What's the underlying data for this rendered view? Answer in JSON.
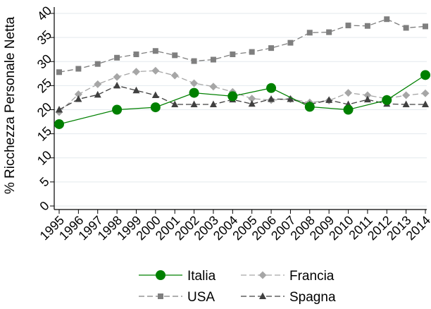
{
  "chart_data": {
    "type": "line",
    "title": "",
    "xlabel": "",
    "ylabel": "% Ricchezza Personale Netta",
    "ylim": [
      0,
      40
    ],
    "yticks": [
      "0",
      "5",
      "10",
      "15",
      "20",
      "25",
      "30",
      "35",
      "40"
    ],
    "xticks": [
      "1995",
      "1996",
      "1997",
      "1998",
      "1999",
      "2000",
      "2001",
      "2002",
      "2003",
      "2004",
      "2005",
      "2006",
      "2007",
      "2008",
      "2009",
      "2010",
      "2011",
      "2012",
      "2013",
      "2014"
    ],
    "grid": "horizontal",
    "legend_position": "bottom",
    "series": [
      {
        "name": "Italia",
        "style": "solid",
        "marker": "circle",
        "color": "#008000",
        "x": [
          1995,
          1998,
          2000,
          2002,
          2004,
          2006,
          2008,
          2010,
          2012,
          2014
        ],
        "y": [
          17.0,
          20.0,
          20.5,
          23.5,
          22.8,
          24.5,
          20.6,
          20.0,
          22.0,
          27.2
        ]
      },
      {
        "name": "Francia",
        "style": "dashed",
        "marker": "diamond",
        "color": "#a6a6a6",
        "x": [
          1995,
          1996,
          1997,
          1998,
          1999,
          2000,
          2001,
          2002,
          2003,
          2004,
          2005,
          2006,
          2007,
          2008,
          2009,
          2010,
          2011,
          2012,
          2013,
          2014
        ],
        "y": [
          19.5,
          23.2,
          25.3,
          26.8,
          27.9,
          28.1,
          27.1,
          25.5,
          24.8,
          23.7,
          22.3,
          22.0,
          22.2,
          21.5,
          21.9,
          23.5,
          23.0,
          22.3,
          23.0,
          23.4
        ]
      },
      {
        "name": "USA",
        "style": "dashed",
        "marker": "square",
        "color": "#7f7f7f",
        "x": [
          1995,
          1996,
          1997,
          1998,
          1999,
          2000,
          2001,
          2002,
          2003,
          2004,
          2005,
          2006,
          2007,
          2008,
          2009,
          2010,
          2011,
          2012,
          2013,
          2014
        ],
        "y": [
          27.8,
          28.5,
          29.5,
          30.8,
          31.5,
          32.2,
          31.3,
          30.1,
          30.4,
          31.5,
          32.0,
          32.8,
          33.9,
          36.0,
          36.1,
          37.5,
          37.4,
          38.8,
          37.0,
          37.3
        ]
      },
      {
        "name": "Spagna",
        "style": "dashed",
        "marker": "triangle",
        "color": "#404040",
        "x": [
          1995,
          1996,
          1997,
          1998,
          1999,
          2000,
          2001,
          2002,
          2003,
          2004,
          2005,
          2006,
          2007,
          2008,
          2009,
          2010,
          2011,
          2012,
          2013,
          2014
        ],
        "y": [
          20.0,
          22.2,
          23.1,
          25.0,
          24.0,
          23.0,
          21.1,
          21.1,
          21.1,
          22.1,
          21.2,
          22.2,
          22.2,
          21.1,
          22.0,
          21.1,
          22.1,
          21.2,
          21.1,
          21.1
        ]
      }
    ]
  }
}
